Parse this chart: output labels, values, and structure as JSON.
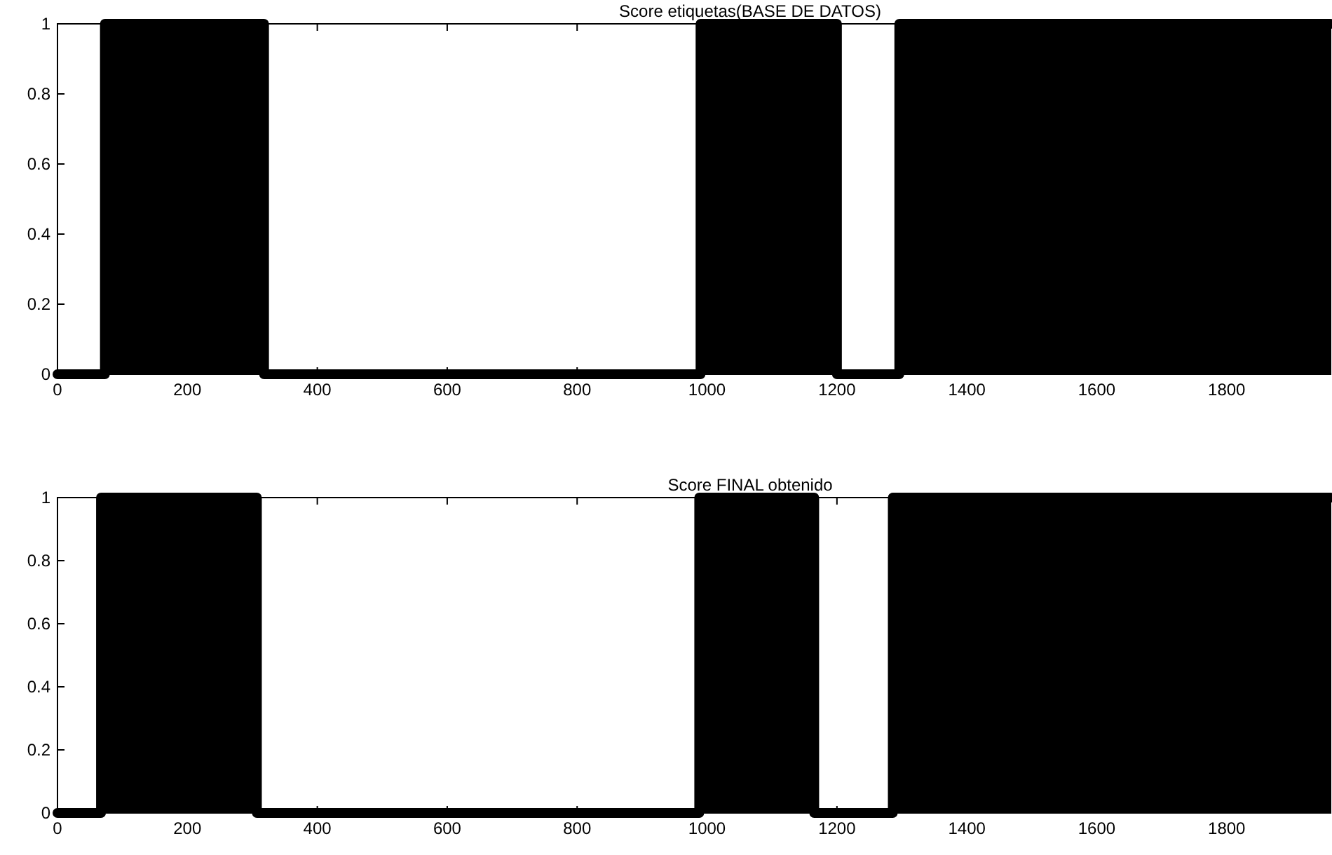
{
  "chart_data": [
    {
      "type": "area",
      "title": "Score etiquetas(BASE DE DATOS)",
      "x": [
        0,
        73,
        73,
        318,
        318,
        990,
        990,
        1200,
        1200,
        1296,
        1296,
        1960
      ],
      "values": [
        0,
        0,
        1,
        1,
        0,
        0,
        1,
        1,
        0,
        0,
        1,
        1
      ],
      "color": "#000000",
      "xlim": [
        0,
        1960
      ],
      "xticks": [
        0,
        200,
        400,
        600,
        800,
        1000,
        1200,
        1400,
        1600,
        1800
      ],
      "ylim": [
        0,
        1
      ],
      "yticks": [
        0,
        0.2,
        0.4,
        0.6,
        0.8,
        1
      ]
    },
    {
      "type": "area",
      "title": "Score FINAL obtenido",
      "x": [
        0,
        67,
        67,
        307,
        307,
        988,
        988,
        1165,
        1165,
        1286,
        1286,
        1960
      ],
      "values": [
        0,
        0,
        1,
        1,
        0,
        0,
        1,
        1,
        0,
        0,
        1,
        1
      ],
      "color": "#000000",
      "xlim": [
        0,
        1960
      ],
      "xticks": [
        0,
        200,
        400,
        600,
        800,
        1000,
        1200,
        1400,
        1600,
        1800
      ],
      "ylim": [
        0,
        1
      ],
      "yticks": [
        0,
        0.2,
        0.4,
        0.6,
        0.8,
        1
      ]
    }
  ]
}
